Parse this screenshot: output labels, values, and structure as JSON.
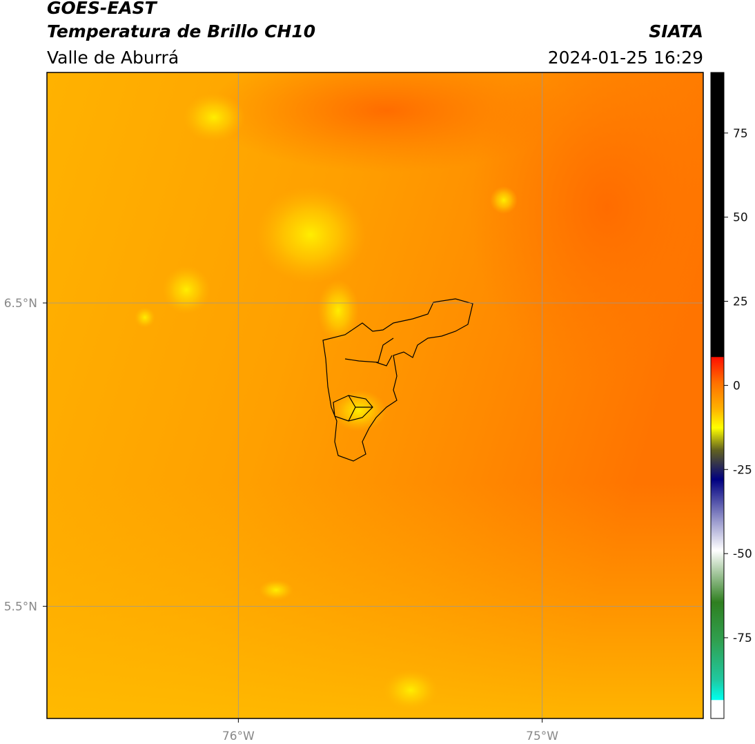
{
  "header": {
    "title": "GOES-EAST",
    "subtitle": "Temperatura de Brillo CH10",
    "region": "Valle de Aburrá",
    "source": "SIATA",
    "datetime": "2024-01-25 16:29"
  },
  "map": {
    "xlim": [
      -76.63,
      -74.47
    ],
    "ylim": [
      5.13,
      7.26
    ],
    "xticks": [
      {
        "value": -76,
        "label": "76°W"
      },
      {
        "value": -75,
        "label": "75°W"
      }
    ],
    "yticks": [
      {
        "value": 6.5,
        "label": "6.5°N"
      },
      {
        "value": 5.5,
        "label": "5.5°N"
      }
    ]
  },
  "colorbar": {
    "lim": [
      -99,
      93
    ],
    "ticks": [
      75,
      50,
      25,
      0,
      -25,
      -50,
      -75
    ]
  }
}
